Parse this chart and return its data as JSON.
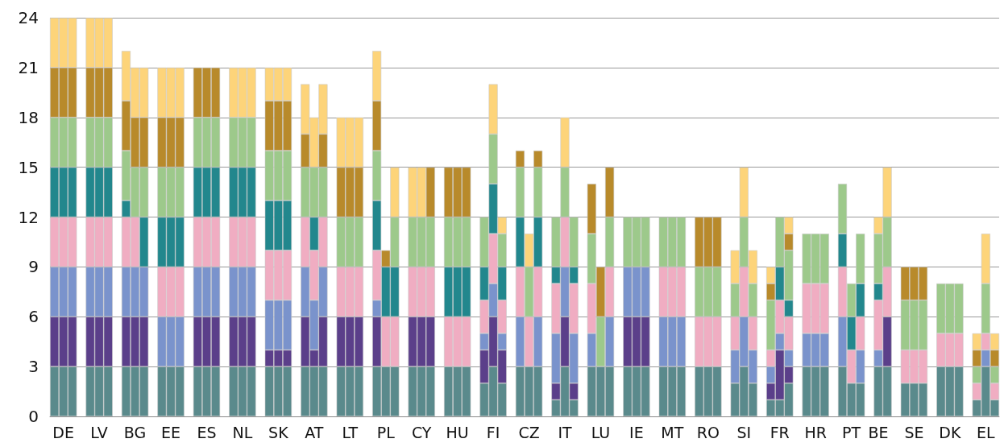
{
  "chart_data": {
    "type": "bar",
    "stacked": true,
    "categories": [
      null,
      "DE",
      null,
      null,
      null,
      "LV",
      null,
      null,
      null,
      "BG",
      null,
      null,
      null,
      "EE",
      null,
      null,
      null,
      "ES",
      null,
      null,
      null,
      "NL",
      null,
      null,
      null,
      "SK",
      null,
      null,
      null,
      "AT",
      null,
      null,
      null,
      "LT",
      null,
      null,
      null,
      "PL",
      null,
      null,
      null,
      "CY",
      null,
      null,
      null,
      "HU",
      null,
      null,
      null,
      "FI",
      null,
      null,
      null,
      "CZ",
      null,
      null,
      null,
      "IT",
      null,
      null,
      null,
      "LU",
      null,
      null,
      null,
      "IE",
      null,
      null,
      null,
      "MT",
      null,
      null,
      null,
      "RO",
      null,
      null,
      null,
      "SI",
      null,
      null,
      null,
      "FR",
      null,
      null,
      null,
      "HR",
      null,
      null,
      null,
      "PT",
      null,
      null,
      "BE",
      null,
      null,
      null,
      "SE",
      null,
      null,
      null,
      "DK",
      null,
      null,
      null,
      "EL",
      null
    ],
    "series": [
      {
        "color": "#5a8a8c",
        "values": [
          3,
          3,
          3,
          null,
          3,
          3,
          3,
          null,
          3,
          3,
          3,
          null,
          3,
          3,
          3,
          null,
          3,
          3,
          3,
          null,
          3,
          3,
          3,
          null,
          3,
          3,
          3,
          null,
          3,
          3,
          3,
          null,
          3,
          3,
          3,
          null,
          3,
          3,
          3,
          null,
          3,
          3,
          3,
          null,
          3,
          3,
          3,
          null,
          2,
          3,
          2,
          null,
          3,
          3,
          3,
          null,
          1,
          3,
          1,
          null,
          3,
          3,
          3,
          null,
          3,
          3,
          3,
          null,
          3,
          3,
          3,
          null,
          3,
          3,
          3,
          null,
          2,
          3,
          2,
          null,
          1,
          1,
          2,
          null,
          3,
          3,
          3,
          null,
          3,
          2,
          2,
          null,
          3,
          3,
          null,
          2,
          2,
          2,
          null,
          3,
          3,
          3,
          null,
          1,
          3,
          1
        ]
      },
      {
        "color": "#5b3f8a",
        "values": [
          3,
          3,
          3,
          null,
          3,
          3,
          3,
          null,
          3,
          3,
          3,
          null,
          null,
          null,
          null,
          null,
          3,
          3,
          3,
          null,
          3,
          3,
          3,
          null,
          1,
          1,
          1,
          null,
          3,
          1,
          3,
          null,
          3,
          3,
          3,
          null,
          3,
          null,
          null,
          null,
          3,
          3,
          3,
          null,
          null,
          null,
          null,
          null,
          2,
          3,
          2,
          null,
          null,
          null,
          null,
          null,
          1,
          3,
          1,
          null,
          null,
          null,
          null,
          null,
          3,
          3,
          3,
          null,
          null,
          null,
          null,
          null,
          null,
          null,
          null,
          null,
          null,
          null,
          null,
          null,
          1,
          3,
          1,
          null,
          null,
          null,
          null,
          null,
          null,
          null,
          null,
          null,
          null,
          3,
          null,
          null,
          null,
          null,
          null,
          null,
          null,
          null,
          null,
          null,
          null,
          null
        ]
      },
      {
        "color": "#7a93cc",
        "values": [
          3,
          3,
          3,
          null,
          3,
          3,
          3,
          null,
          3,
          3,
          3,
          null,
          3,
          3,
          3,
          null,
          3,
          3,
          3,
          null,
          3,
          3,
          3,
          null,
          3,
          3,
          3,
          null,
          3,
          3,
          3,
          null,
          null,
          null,
          null,
          null,
          1,
          null,
          null,
          null,
          null,
          null,
          null,
          null,
          null,
          null,
          null,
          null,
          1,
          2,
          1,
          null,
          3,
          null,
          3,
          null,
          3,
          3,
          3,
          null,
          2,
          null,
          3,
          null,
          3,
          3,
          3,
          null,
          3,
          3,
          3,
          null,
          null,
          null,
          null,
          null,
          2,
          3,
          2,
          null,
          1,
          1,
          1,
          null,
          2,
          2,
          2,
          null,
          3,
          null,
          2,
          null,
          1,
          null,
          null,
          null,
          null,
          null,
          null,
          null,
          null,
          null,
          null,
          null,
          1,
          null
        ]
      },
      {
        "color": "#f0adc2",
        "values": [
          3,
          3,
          3,
          null,
          3,
          3,
          3,
          null,
          3,
          3,
          null,
          null,
          3,
          3,
          3,
          null,
          3,
          3,
          3,
          null,
          3,
          3,
          3,
          null,
          3,
          3,
          3,
          null,
          3,
          3,
          3,
          null,
          3,
          3,
          3,
          null,
          3,
          3,
          3,
          null,
          3,
          3,
          3,
          null,
          3,
          3,
          3,
          null,
          2,
          3,
          2,
          null,
          3,
          3,
          3,
          null,
          3,
          3,
          3,
          null,
          3,
          null,
          3,
          null,
          null,
          null,
          null,
          null,
          3,
          3,
          3,
          null,
          3,
          3,
          3,
          null,
          2,
          3,
          2,
          null,
          1,
          2,
          2,
          null,
          3,
          3,
          3,
          null,
          3,
          2,
          2,
          null,
          3,
          3,
          null,
          2,
          2,
          2,
          null,
          2,
          2,
          2,
          null,
          1,
          1,
          1
        ]
      },
      {
        "color": "#22878d",
        "values": [
          3,
          3,
          3,
          null,
          3,
          3,
          3,
          null,
          1,
          null,
          3,
          null,
          3,
          3,
          3,
          null,
          3,
          3,
          3,
          null,
          3,
          3,
          3,
          null,
          3,
          3,
          3,
          null,
          null,
          2,
          null,
          null,
          null,
          null,
          null,
          null,
          3,
          3,
          3,
          null,
          null,
          null,
          null,
          null,
          3,
          3,
          3,
          null,
          2,
          3,
          2,
          null,
          3,
          null,
          3,
          null,
          1,
          null,
          1,
          null,
          null,
          null,
          null,
          null,
          null,
          null,
          null,
          null,
          null,
          null,
          null,
          null,
          null,
          null,
          null,
          null,
          null,
          null,
          null,
          null,
          null,
          2,
          1,
          null,
          null,
          null,
          null,
          null,
          2,
          2,
          2,
          null,
          1,
          null,
          null,
          null,
          null,
          null,
          null,
          null,
          null,
          null,
          null,
          null,
          null,
          null
        ]
      },
      {
        "color": "#9dc98b",
        "values": [
          3,
          3,
          3,
          null,
          3,
          3,
          3,
          null,
          3,
          3,
          3,
          null,
          3,
          3,
          3,
          null,
          3,
          3,
          3,
          null,
          3,
          3,
          3,
          null,
          3,
          3,
          3,
          null,
          3,
          3,
          3,
          null,
          3,
          3,
          3,
          null,
          3,
          null,
          3,
          null,
          3,
          3,
          3,
          null,
          3,
          3,
          3,
          null,
          3,
          3,
          2,
          null,
          3,
          3,
          3,
          null,
          3,
          3,
          3,
          null,
          3,
          3,
          3,
          null,
          3,
          3,
          3,
          null,
          3,
          3,
          3,
          null,
          3,
          3,
          3,
          null,
          2,
          3,
          2,
          null,
          3,
          3,
          3,
          null,
          3,
          3,
          3,
          null,
          3,
          2,
          3,
          null,
          3,
          3,
          null,
          3,
          3,
          3,
          null,
          3,
          3,
          3,
          null,
          1,
          3,
          1
        ]
      },
      {
        "color": "#b88a2b",
        "values": [
          3,
          3,
          3,
          null,
          3,
          3,
          3,
          null,
          3,
          3,
          3,
          null,
          3,
          3,
          3,
          null,
          3,
          3,
          3,
          null,
          null,
          null,
          null,
          null,
          3,
          3,
          3,
          null,
          2,
          null,
          2,
          null,
          3,
          3,
          3,
          null,
          3,
          1,
          null,
          null,
          null,
          null,
          3,
          null,
          3,
          3,
          3,
          null,
          null,
          null,
          null,
          null,
          1,
          null,
          1,
          null,
          null,
          null,
          null,
          null,
          3,
          3,
          3,
          null,
          null,
          null,
          null,
          null,
          null,
          null,
          null,
          null,
          3,
          3,
          3,
          null,
          null,
          null,
          null,
          null,
          1,
          null,
          1,
          null,
          null,
          null,
          null,
          null,
          null,
          null,
          null,
          null,
          null,
          null,
          null,
          2,
          2,
          2,
          null,
          null,
          null,
          null,
          null,
          1,
          null,
          1
        ]
      },
      {
        "color": "#fdd47a",
        "values": [
          3,
          3,
          3,
          null,
          3,
          3,
          3,
          null,
          3,
          3,
          3,
          null,
          3,
          3,
          3,
          null,
          null,
          null,
          null,
          null,
          3,
          3,
          3,
          null,
          2,
          2,
          2,
          null,
          3,
          3,
          3,
          null,
          3,
          3,
          3,
          null,
          3,
          null,
          3,
          null,
          3,
          3,
          null,
          null,
          null,
          null,
          null,
          null,
          null,
          3,
          1,
          null,
          null,
          2,
          null,
          null,
          null,
          3,
          null,
          null,
          null,
          null,
          null,
          null,
          null,
          null,
          null,
          null,
          null,
          null,
          null,
          null,
          null,
          null,
          null,
          null,
          2,
          3,
          2,
          null,
          1,
          null,
          1,
          null,
          null,
          null,
          null,
          null,
          null,
          null,
          null,
          null,
          1,
          3,
          null,
          null,
          null,
          null,
          null,
          null,
          null,
          null,
          null,
          1,
          3,
          1
        ]
      }
    ],
    "ylim": [
      0,
      24
    ],
    "yticks": [
      0,
      3,
      6,
      9,
      12,
      15,
      18,
      21,
      24
    ],
    "grid": "y"
  }
}
